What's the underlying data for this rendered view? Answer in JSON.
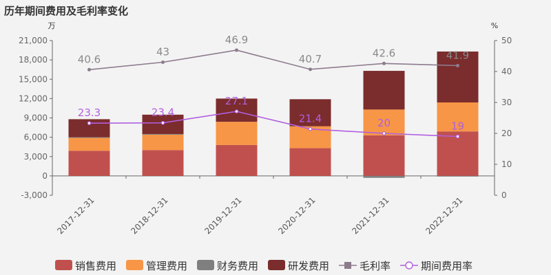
{
  "title": "历年期间费用及毛利率变化",
  "left_unit": "万",
  "right_unit": "%",
  "chart_data": {
    "type": "bar",
    "stacked": true,
    "categories": [
      "2017-12-31",
      "2018-12-31",
      "2019-12-31",
      "2020-12-31",
      "2021-12-31",
      "2022-12-31"
    ],
    "series": [
      {
        "name": "销售费用",
        "type": "bar",
        "axis": "left",
        "color": "#c0504d",
        "values": [
          3900,
          4000,
          4800,
          4300,
          6300,
          6900
        ]
      },
      {
        "name": "管理费用",
        "type": "bar",
        "axis": "left",
        "color": "#f79646",
        "values": [
          2000,
          2400,
          3600,
          3400,
          4000,
          4500
        ]
      },
      {
        "name": "财务费用",
        "type": "bar",
        "axis": "left",
        "color": "#7f7f7f",
        "values": [
          100,
          100,
          0,
          0,
          -300,
          -100
        ]
      },
      {
        "name": "研发费用",
        "type": "bar",
        "axis": "left",
        "color": "#7b2c2c",
        "values": [
          2800,
          3000,
          3600,
          4200,
          6000,
          7900
        ]
      },
      {
        "name": "毛利率",
        "type": "line",
        "axis": "right",
        "color": "#8c7b8c",
        "values": [
          40.6,
          43,
          46.9,
          40.7,
          42.6,
          41.9
        ],
        "labels": [
          "40.6",
          "43",
          "46.9",
          "40.7",
          "42.6",
          "41.9"
        ]
      },
      {
        "name": "期间费用率",
        "type": "line",
        "axis": "right",
        "color": "#b05fe0",
        "values": [
          23.3,
          23.4,
          27.1,
          21.4,
          20,
          19
        ],
        "labels": [
          "23.3",
          "23.4",
          "27.1",
          "21.4",
          "20",
          "19"
        ]
      }
    ],
    "left_axis": {
      "min": -3000,
      "max": 21000,
      "ticks": [
        "-3,000",
        "0",
        "3,000",
        "6,000",
        "9,000",
        "12,000",
        "15,000",
        "18,000",
        "21,000"
      ],
      "tick_values": [
        -3000,
        0,
        3000,
        6000,
        9000,
        12000,
        15000,
        18000,
        21000
      ]
    },
    "right_axis": {
      "min": 0,
      "max": 50,
      "ticks": [
        "0",
        "10",
        "20",
        "30",
        "40",
        "50"
      ],
      "tick_values": [
        0,
        10,
        20,
        30,
        40,
        50
      ]
    },
    "grid": false,
    "legend_position": "bottom"
  }
}
